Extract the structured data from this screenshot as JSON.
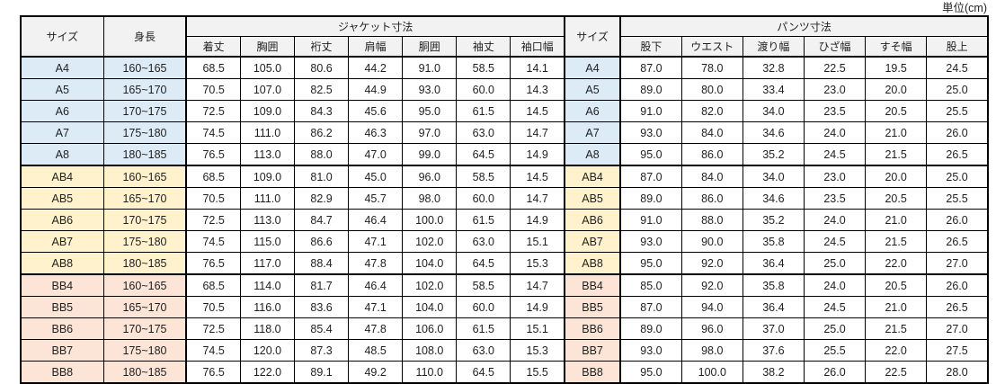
{
  "unit_label": "単位(cm)",
  "colors": {
    "group_a_fill": "#DDEBF7",
    "group_ab_fill": "#FFF2CC",
    "group_bb_fill": "#FCE4D6",
    "header_fill": "#F2F2F2",
    "border": "#000000",
    "text": "#1F1F1F"
  },
  "tables": {
    "jacket": {
      "corner_headers": [
        "サイズ",
        "身長"
      ],
      "group_header": "ジャケット寸法",
      "columns": [
        "着丈",
        "胸囲",
        "裄丈",
        "肩幅",
        "胴囲",
        "袖丈",
        "袖口幅"
      ],
      "rows": [
        {
          "size": "A4",
          "height": "160~165",
          "values": [
            "68.5",
            "105.0",
            "80.6",
            "44.2",
            "91.0",
            "58.5",
            "14.1"
          ]
        },
        {
          "size": "A5",
          "height": "165~170",
          "values": [
            "70.5",
            "107.0",
            "82.5",
            "44.9",
            "93.0",
            "60.0",
            "14.3"
          ]
        },
        {
          "size": "A6",
          "height": "170~175",
          "values": [
            "72.5",
            "109.0",
            "84.3",
            "45.6",
            "95.0",
            "61.5",
            "14.5"
          ]
        },
        {
          "size": "A7",
          "height": "175~180",
          "values": [
            "74.5",
            "111.0",
            "86.2",
            "46.3",
            "97.0",
            "63.0",
            "14.7"
          ]
        },
        {
          "size": "A8",
          "height": "180~185",
          "values": [
            "76.5",
            "113.0",
            "88.0",
            "47.0",
            "99.0",
            "64.5",
            "14.9"
          ]
        },
        {
          "size": "AB4",
          "height": "160~165",
          "values": [
            "68.5",
            "109.0",
            "81.0",
            "45.0",
            "96.0",
            "58.5",
            "14.5"
          ]
        },
        {
          "size": "AB5",
          "height": "165~170",
          "values": [
            "70.5",
            "111.0",
            "82.9",
            "45.7",
            "98.0",
            "60.0",
            "14.7"
          ]
        },
        {
          "size": "AB6",
          "height": "170~175",
          "values": [
            "72.5",
            "113.0",
            "84.7",
            "46.4",
            "100.0",
            "61.5",
            "14.9"
          ]
        },
        {
          "size": "AB7",
          "height": "175~180",
          "values": [
            "74.5",
            "115.0",
            "86.6",
            "47.1",
            "102.0",
            "63.0",
            "15.1"
          ]
        },
        {
          "size": "AB8",
          "height": "180~185",
          "values": [
            "76.5",
            "117.0",
            "88.4",
            "47.8",
            "104.0",
            "64.5",
            "15.3"
          ]
        },
        {
          "size": "BB4",
          "height": "160~165",
          "values": [
            "68.5",
            "114.0",
            "81.7",
            "46.4",
            "102.0",
            "58.5",
            "14.7"
          ]
        },
        {
          "size": "BB5",
          "height": "165~170",
          "values": [
            "70.5",
            "116.0",
            "83.6",
            "47.1",
            "104.0",
            "60.0",
            "14.9"
          ]
        },
        {
          "size": "BB6",
          "height": "170~175",
          "values": [
            "72.5",
            "118.0",
            "85.4",
            "47.8",
            "106.0",
            "61.5",
            "15.1"
          ]
        },
        {
          "size": "BB7",
          "height": "175~180",
          "values": [
            "74.5",
            "120.0",
            "87.3",
            "48.5",
            "108.0",
            "63.0",
            "15.3"
          ]
        },
        {
          "size": "BB8",
          "height": "180~185",
          "values": [
            "76.5",
            "122.0",
            "89.1",
            "49.2",
            "110.0",
            "64.5",
            "15.5"
          ]
        }
      ]
    },
    "pants": {
      "corner_header": "サイズ",
      "group_header": "パンツ寸法",
      "columns": [
        "股下",
        "ウエスト",
        "渡り幅",
        "ひざ幅",
        "すそ幅",
        "股上"
      ],
      "rows": [
        {
          "size": "A4",
          "values": [
            "87.0",
            "78.0",
            "32.8",
            "22.5",
            "19.5",
            "24.5"
          ]
        },
        {
          "size": "A5",
          "values": [
            "89.0",
            "80.0",
            "33.4",
            "23.0",
            "20.0",
            "25.0"
          ]
        },
        {
          "size": "A6",
          "values": [
            "91.0",
            "82.0",
            "34.0",
            "23.5",
            "20.5",
            "25.5"
          ]
        },
        {
          "size": "A7",
          "values": [
            "93.0",
            "84.0",
            "34.6",
            "24.0",
            "21.0",
            "26.0"
          ]
        },
        {
          "size": "A8",
          "values": [
            "95.0",
            "86.0",
            "35.2",
            "24.5",
            "21.5",
            "26.5"
          ]
        },
        {
          "size": "AB4",
          "values": [
            "87.0",
            "84.0",
            "34.0",
            "23.0",
            "20.0",
            "25.0"
          ]
        },
        {
          "size": "AB5",
          "values": [
            "89.0",
            "86.0",
            "34.6",
            "23.5",
            "20.5",
            "25.5"
          ]
        },
        {
          "size": "AB6",
          "values": [
            "91.0",
            "88.0",
            "35.2",
            "24.0",
            "21.0",
            "26.0"
          ]
        },
        {
          "size": "AB7",
          "values": [
            "93.0",
            "90.0",
            "35.8",
            "24.5",
            "21.5",
            "26.5"
          ]
        },
        {
          "size": "AB8",
          "values": [
            "95.0",
            "92.0",
            "36.4",
            "25.0",
            "22.0",
            "27.0"
          ]
        },
        {
          "size": "BB4",
          "values": [
            "85.0",
            "92.0",
            "35.8",
            "24.0",
            "20.5",
            "26.0"
          ]
        },
        {
          "size": "BB5",
          "values": [
            "87.0",
            "94.0",
            "36.4",
            "24.5",
            "21.0",
            "26.5"
          ]
        },
        {
          "size": "BB6",
          "values": [
            "89.0",
            "96.0",
            "37.0",
            "25.0",
            "21.5",
            "27.0"
          ]
        },
        {
          "size": "BB7",
          "values": [
            "93.0",
            "98.0",
            "37.6",
            "25.5",
            "22.0",
            "27.5"
          ]
        },
        {
          "size": "BB8",
          "values": [
            "95.0",
            "100.0",
            "38.2",
            "26.0",
            "22.5",
            "28.0"
          ]
        }
      ]
    }
  }
}
